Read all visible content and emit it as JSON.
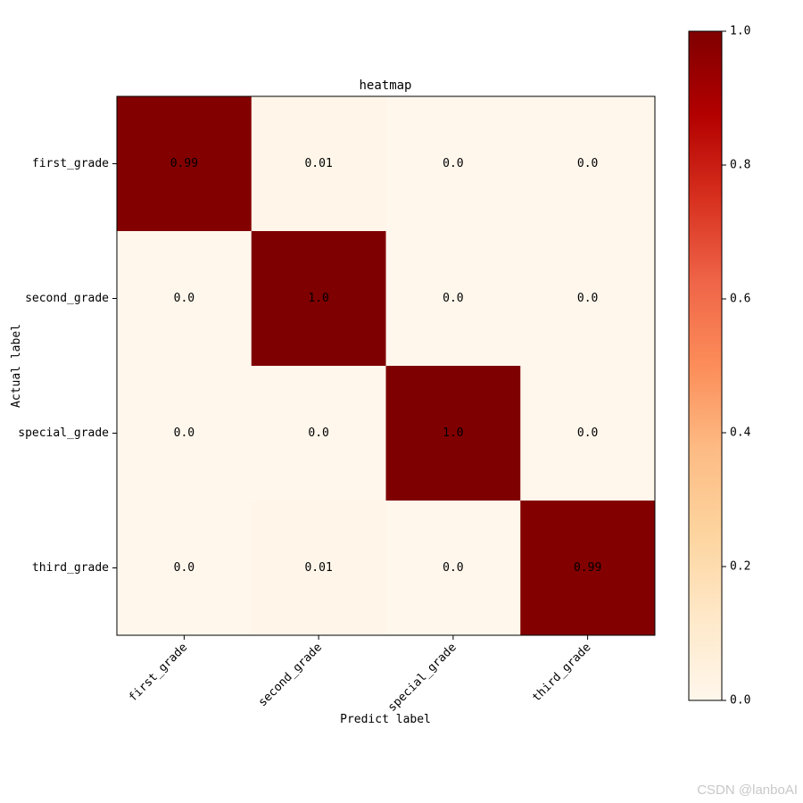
{
  "chart_data": {
    "type": "heatmap",
    "title": "heatmap",
    "xlabel": "Predict label",
    "ylabel": "Actual label",
    "x_categories": [
      "first_grade",
      "second_grade",
      "special_grade",
      "third_grade"
    ],
    "y_categories": [
      "first_grade",
      "second_grade",
      "special_grade",
      "third_grade"
    ],
    "values": [
      [
        0.99,
        0.01,
        0.0,
        0.0
      ],
      [
        0.0,
        1.0,
        0.0,
        0.0
      ],
      [
        0.0,
        0.0,
        1.0,
        0.0
      ],
      [
        0.0,
        0.01,
        0.0,
        0.99
      ]
    ],
    "cell_labels": [
      [
        "0.99",
        "0.01",
        "0.0",
        "0.0"
      ],
      [
        "0.0",
        "1.0",
        "0.0",
        "0.0"
      ],
      [
        "0.0",
        "0.0",
        "1.0",
        "0.0"
      ],
      [
        "0.0",
        "0.01",
        "0.0",
        "0.99"
      ]
    ],
    "colorbar": {
      "range": [
        0,
        1
      ],
      "ticks": [
        "0.0",
        "0.2",
        "0.4",
        "0.6",
        "0.8",
        "1.0"
      ],
      "colormap": "OrRd"
    }
  },
  "watermark": "CSDN @lanboAI"
}
